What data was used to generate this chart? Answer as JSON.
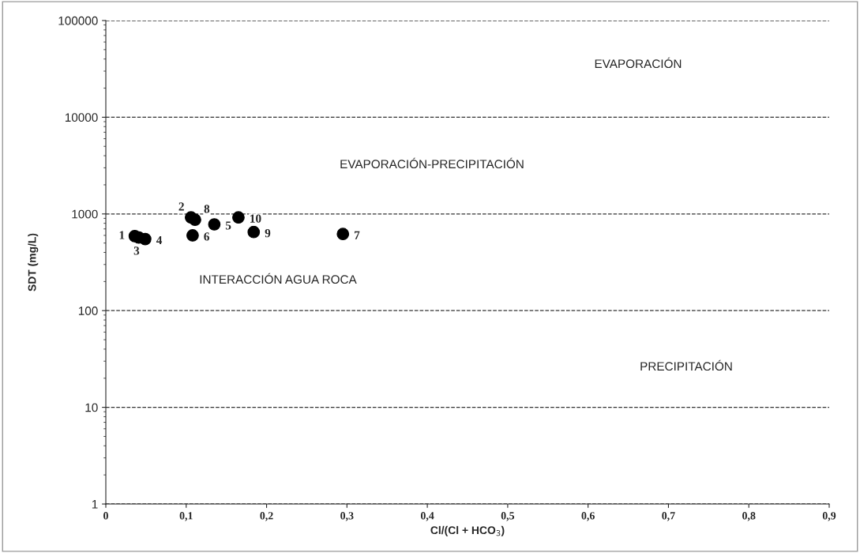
{
  "chart_data": {
    "type": "scatter",
    "xlabel": "Cl/(Cl + HCO$_{3}$)",
    "ylabel": "SDT (mg/L)",
    "series": [
      {
        "color": "#000000",
        "x": [
          0.036,
          0.106,
          0.041,
          0.049,
          0.135,
          0.108,
          0.295,
          0.111,
          0.184,
          0.165
        ],
        "values": [
          590,
          920,
          570,
          550,
          780,
          600,
          620,
          870,
          650,
          920
        ]
      }
    ],
    "annotations": [
      {
        "text": "1",
        "x": 0.036,
        "y": 590
      },
      {
        "text": "2",
        "x": 0.106,
        "y": 920
      },
      {
        "text": "3",
        "x": 0.041,
        "y": 570
      },
      {
        "text": "4",
        "x": 0.049,
        "y": 550
      },
      {
        "text": "5",
        "x": 0.135,
        "y": 780
      },
      {
        "text": "6",
        "x": 0.108,
        "y": 600
      },
      {
        "text": "7",
        "x": 0.295,
        "y": 620
      },
      {
        "text": "8",
        "x": 0.111,
        "y": 870
      },
      {
        "text": "9",
        "x": 0.184,
        "y": 650
      },
      {
        "text": "10",
        "x": 0.165,
        "y": 920
      },
      "EVAPORACIÓN",
      "EVAPORACIÓN-PRECIPITACIÓN",
      "INTERACCIÓN AGUA ROCA",
      "PRECIPITACIÓN"
    ],
    "log": "y",
    "xlim": [
      0,
      0.9
    ],
    "ylim": [
      1,
      100000
    ],
    "xticks": [
      0,
      {
        "value": 0.1,
        "label": "0,1"
      },
      {
        "value": 0.2,
        "label": "0,2"
      },
      {
        "value": 0.3,
        "label": "0,3"
      },
      {
        "value": 0.4,
        "label": "0,4"
      },
      {
        "value": 0.5,
        "label": "0,5"
      },
      {
        "value": 0.6,
        "label": "0,6"
      },
      {
        "value": 0.7,
        "label": "0,7"
      },
      {
        "value": 0.8,
        "label": "0,8"
      },
      {
        "value": 0.9,
        "label": "0,9"
      }
    ],
    "yticks": [
      1,
      10,
      100,
      1000,
      10000,
      100000
    ],
    "grid": "y",
    "line_style": "dashed",
    "marker": "circle"
  }
}
